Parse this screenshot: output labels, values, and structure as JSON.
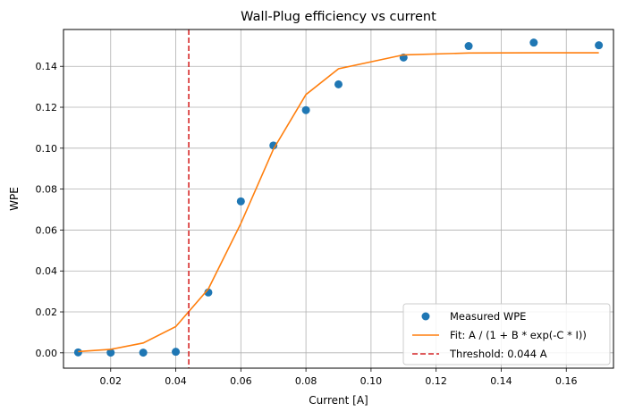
{
  "chart_data": {
    "type": "scatter",
    "title": "Wall-Plug efficiency vs current",
    "xlabel": "Current [A]",
    "ylabel": "WPE",
    "xlim": [
      0.0055,
      0.1745
    ],
    "ylim": [
      -0.0075,
      0.158
    ],
    "x_ticks": [
      0.02,
      0.04,
      0.06,
      0.08,
      0.1,
      0.12,
      0.14,
      0.16
    ],
    "x_tick_labels": [
      "0.02",
      "0.04",
      "0.06",
      "0.08",
      "0.10",
      "0.12",
      "0.14",
      "0.16"
    ],
    "y_ticks": [
      0.0,
      0.02,
      0.04,
      0.06,
      0.08,
      0.1,
      0.12,
      0.14
    ],
    "y_tick_labels": [
      "0.00",
      "0.02",
      "0.04",
      "0.06",
      "0.08",
      "0.10",
      "0.12",
      "0.14"
    ],
    "grid": true,
    "legend_position": "lower-right",
    "series": [
      {
        "name": "Measured WPE",
        "kind": "scatter",
        "color": "#1f77b4",
        "x": [
          0.01,
          0.02,
          0.03,
          0.04,
          0.05,
          0.06,
          0.07,
          0.08,
          0.09,
          0.11,
          0.13,
          0.15,
          0.17
        ],
        "y": [
          0.0002,
          0.0001,
          0.0001,
          0.0005,
          0.0295,
          0.074,
          0.1013,
          0.1186,
          0.1312,
          0.1443,
          0.1499,
          0.1516,
          0.1503
        ]
      },
      {
        "name": "Fit: A / (1 + B * exp(-C * I))",
        "kind": "line",
        "color": "#ff7f0e",
        "x": [
          0.01,
          0.02,
          0.03,
          0.04,
          0.05,
          0.06,
          0.07,
          0.08,
          0.09,
          0.11,
          0.13,
          0.15,
          0.17
        ],
        "y": [
          0.0006,
          0.0017,
          0.0048,
          0.0128,
          0.0312,
          0.0632,
          0.0995,
          0.1262,
          0.1388,
          0.1456,
          0.1465,
          0.1466,
          0.1466
        ]
      }
    ],
    "threshold": {
      "name": "Threshold: 0.044 A",
      "x": 0.044,
      "color": "#d62728",
      "style": "dashed"
    }
  }
}
